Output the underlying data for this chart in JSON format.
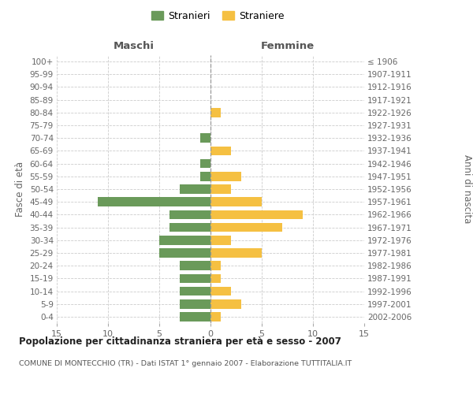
{
  "age_groups": [
    "0-4",
    "5-9",
    "10-14",
    "15-19",
    "20-24",
    "25-29",
    "30-34",
    "35-39",
    "40-44",
    "45-49",
    "50-54",
    "55-59",
    "60-64",
    "65-69",
    "70-74",
    "75-79",
    "80-84",
    "85-89",
    "90-94",
    "95-99",
    "100+"
  ],
  "birth_years": [
    "2002-2006",
    "1997-2001",
    "1992-1996",
    "1987-1991",
    "1982-1986",
    "1977-1981",
    "1972-1976",
    "1967-1971",
    "1962-1966",
    "1957-1961",
    "1952-1956",
    "1947-1951",
    "1942-1946",
    "1937-1941",
    "1932-1936",
    "1927-1931",
    "1922-1926",
    "1917-1921",
    "1912-1916",
    "1907-1911",
    "≤ 1906"
  ],
  "maschi": [
    3,
    3,
    3,
    3,
    3,
    5,
    5,
    4,
    4,
    11,
    3,
    1,
    1,
    0,
    1,
    0,
    0,
    0,
    0,
    0,
    0
  ],
  "femmine": [
    1,
    3,
    2,
    1,
    1,
    5,
    2,
    7,
    9,
    5,
    2,
    3,
    0,
    2,
    0,
    0,
    1,
    0,
    0,
    0,
    0
  ],
  "maschi_color": "#6a9a5a",
  "femmine_color": "#f5c042",
  "title": "Popolazione per cittadinanza straniera per età e sesso - 2007",
  "subtitle": "COMUNE DI MONTECCHIO (TR) - Dati ISTAT 1° gennaio 2007 - Elaborazione TUTTITALIA.IT",
  "xlabel_left": "Maschi",
  "xlabel_right": "Femmine",
  "ylabel_left": "Fasce di età",
  "ylabel_right": "Anni di nascita",
  "legend_stranieri": "Stranieri",
  "legend_straniere": "Straniere",
  "xlim": 15,
  "background_color": "#ffffff",
  "grid_color": "#cccccc"
}
